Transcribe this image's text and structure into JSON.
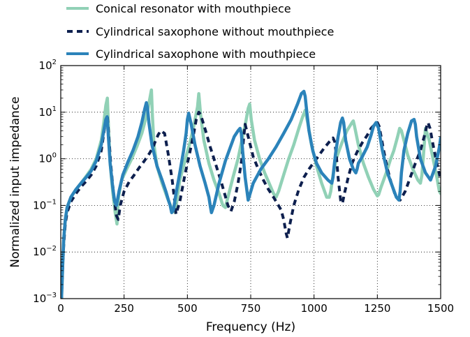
{
  "chart_data": {
    "type": "line",
    "xlabel": "Frequency (Hz)",
    "ylabel": "Normalized input impedance",
    "xlim": [
      0,
      1500
    ],
    "ylim": [
      0.001,
      100
    ],
    "yscale": "log",
    "grid": true,
    "legend_position": "top (above plot)",
    "x_ticks": [
      0,
      250,
      500,
      750,
      1000,
      1250,
      1500
    ],
    "x_tick_labels": [
      "0",
      "250",
      "500",
      "750",
      "1000",
      "1250",
      "1500"
    ],
    "y_ticks": [
      0.001,
      0.01,
      0.1,
      1,
      10,
      100
    ],
    "y_tick_labels": [
      {
        "base": "10",
        "exp": "−3"
      },
      {
        "base": "10",
        "exp": "−2"
      },
      {
        "base": "10",
        "exp": "−1"
      },
      {
        "base": "10",
        "exp": "0"
      },
      {
        "base": "10",
        "exp": "1"
      },
      {
        "base": "10",
        "exp": "2"
      }
    ],
    "series": [
      {
        "name": "Conical resonator with mouthpiece",
        "color": "#91d1b6",
        "style": "solid",
        "x": [
          3,
          8,
          12,
          18,
          25,
          40,
          60,
          80,
          100,
          120,
          140,
          160,
          170,
          178,
          184,
          189,
          195,
          205,
          215,
          222,
          228,
          240,
          260,
          280,
          300,
          320,
          340,
          352,
          358,
          362,
          368,
          380,
          400,
          420,
          440,
          452,
          460,
          470,
          490,
          510,
          525,
          540,
          545,
          552,
          565,
          585,
          605,
          625,
          640,
          650,
          660,
          680,
          700,
          715,
          730,
          740,
          746,
          752,
          765,
          785,
          805,
          825,
          840,
          850,
          860,
          880,
          900,
          920,
          940,
          955,
          965,
          975,
          990,
          1010,
          1030,
          1050,
          1060,
          1066,
          1075,
          1090,
          1110,
          1130,
          1150,
          1155,
          1160,
          1175,
          1195,
          1215,
          1235,
          1250,
          1255,
          1265,
          1285,
          1300,
          1315,
          1330,
          1338,
          1345,
          1355,
          1370,
          1390,
          1410,
          1420,
          1426,
          1432,
          1440,
          1455,
          1470,
          1485,
          1495,
          1500
        ],
        "y": [
          0.001,
          0.006,
          0.02,
          0.05,
          0.09,
          0.15,
          0.22,
          0.3,
          0.42,
          0.6,
          1.0,
          2.5,
          6.0,
          14.0,
          20.0,
          4.0,
          0.8,
          0.2,
          0.07,
          0.04,
          0.15,
          0.35,
          0.6,
          1.0,
          1.8,
          3.5,
          9.0,
          20.0,
          30.0,
          8.0,
          2.0,
          0.7,
          0.3,
          0.15,
          0.08,
          0.07,
          0.15,
          0.35,
          0.9,
          2.2,
          5.0,
          13.0,
          25.0,
          9.0,
          2.5,
          0.8,
          0.35,
          0.18,
          0.1,
          0.09,
          0.15,
          0.4,
          1.0,
          2.5,
          6.0,
          12.0,
          15.0,
          7.0,
          2.5,
          1.0,
          0.5,
          0.28,
          0.18,
          0.15,
          0.2,
          0.45,
          1.0,
          2.0,
          4.5,
          8.0,
          11.0,
          6.0,
          2.0,
          0.7,
          0.3,
          0.15,
          0.15,
          0.2,
          0.45,
          1.1,
          2.2,
          4.0,
          6.0,
          6.5,
          5.0,
          2.0,
          0.8,
          0.4,
          0.22,
          0.16,
          0.17,
          0.25,
          0.5,
          0.9,
          1.5,
          3.0,
          4.5,
          4.0,
          2.5,
          1.2,
          0.6,
          0.35,
          0.3,
          0.45,
          1.2,
          4.5,
          2.5,
          1.0,
          0.4,
          0.2,
          0.18
        ]
      },
      {
        "name": "Cylindrical saxophone without mouthpiece",
        "color": "#0d1f4e",
        "style": "dashed",
        "x": [
          3,
          8,
          12,
          18,
          25,
          40,
          60,
          80,
          100,
          120,
          140,
          160,
          170,
          178,
          184,
          190,
          198,
          210,
          220,
          227,
          235,
          250,
          270,
          290,
          310,
          330,
          350,
          365,
          375,
          385,
          395,
          410,
          425,
          440,
          448,
          455,
          470,
          490,
          510,
          525,
          535,
          545,
          552,
          562,
          575,
          590,
          605,
          620,
          635,
          648,
          660,
          672,
          685,
          700,
          715,
          722,
          728,
          740,
          760,
          780,
          800,
          820,
          840,
          855,
          870,
          880,
          890,
          895,
          905,
          920,
          940,
          960,
          980,
          1000,
          1020,
          1040,
          1060,
          1075,
          1082,
          1088,
          1095,
          1105,
          1112,
          1120,
          1135,
          1150,
          1170,
          1190,
          1210,
          1225,
          1240,
          1250,
          1257,
          1265,
          1275,
          1290,
          1305,
          1320,
          1340,
          1360,
          1380,
          1400,
          1420,
          1435,
          1445,
          1450,
          1458,
          1470,
          1485,
          1500
        ],
        "y": [
          0.001,
          0.005,
          0.015,
          0.04,
          0.07,
          0.12,
          0.18,
          0.25,
          0.33,
          0.45,
          0.7,
          1.5,
          3.5,
          7.0,
          8.5,
          3.0,
          0.7,
          0.15,
          0.06,
          0.05,
          0.1,
          0.2,
          0.32,
          0.45,
          0.65,
          0.9,
          1.3,
          1.8,
          2.5,
          3.3,
          4.0,
          3.5,
          1.2,
          0.35,
          0.15,
          0.065,
          0.12,
          0.45,
          1.4,
          3.5,
          7.0,
          10.0,
          9.0,
          6.0,
          3.5,
          1.8,
          1.0,
          0.55,
          0.3,
          0.17,
          0.1,
          0.075,
          0.12,
          0.3,
          1.0,
          2.8,
          5.5,
          3.0,
          1.1,
          0.6,
          0.35,
          0.22,
          0.15,
          0.11,
          0.08,
          0.05,
          0.025,
          0.02,
          0.04,
          0.1,
          0.22,
          0.4,
          0.6,
          0.85,
          1.2,
          1.7,
          2.3,
          2.8,
          2.3,
          1.2,
          0.4,
          0.13,
          0.11,
          0.18,
          0.4,
          0.8,
          1.4,
          2.2,
          3.2,
          4.5,
          5.5,
          6.0,
          5.0,
          3.0,
          1.5,
          0.6,
          0.3,
          0.17,
          0.13,
          0.2,
          0.4,
          0.8,
          1.5,
          3.0,
          5.0,
          6.0,
          4.5,
          2.0,
          0.8,
          0.35
        ]
      },
      {
        "name": "Cylindrical saxophone with mouthpiece",
        "color": "#2b83ba",
        "style": "solid",
        "x": [
          3,
          8,
          12,
          18,
          25,
          40,
          60,
          80,
          100,
          120,
          140,
          160,
          170,
          178,
          183,
          188,
          195,
          205,
          213,
          220,
          230,
          245,
          265,
          285,
          305,
          320,
          332,
          338,
          342,
          348,
          360,
          380,
          400,
          415,
          425,
          432,
          438,
          445,
          455,
          470,
          485,
          495,
          500,
          505,
          515,
          530,
          550,
          570,
          585,
          590,
          595,
          605,
          625,
          650,
          670,
          685,
          700,
          708,
          713,
          718,
          728,
          740,
          760,
          790,
          820,
          850,
          880,
          910,
          935,
          950,
          960,
          965,
          970,
          980,
          995,
          1010,
          1030,
          1055,
          1070,
          1075,
          1078,
          1085,
          1095,
          1105,
          1112,
          1117,
          1125,
          1140,
          1155,
          1165,
          1170,
          1175,
          1190,
          1210,
          1225,
          1235,
          1245,
          1255,
          1270,
          1290,
          1310,
          1325,
          1335,
          1340,
          1345,
          1355,
          1370,
          1385,
          1395,
          1400,
          1405,
          1420,
          1440,
          1460,
          1480,
          1495,
          1500
        ],
        "y": [
          0.001,
          0.006,
          0.02,
          0.05,
          0.09,
          0.15,
          0.22,
          0.3,
          0.4,
          0.55,
          0.9,
          2.0,
          4.0,
          7.0,
          8.0,
          3.0,
          0.8,
          0.25,
          0.12,
          0.1,
          0.2,
          0.45,
          0.85,
          1.5,
          3.0,
          6.0,
          12.0,
          16.0,
          13.0,
          6.0,
          2.0,
          0.7,
          0.35,
          0.2,
          0.13,
          0.1,
          0.07,
          0.08,
          0.18,
          0.5,
          1.5,
          3.5,
          7.0,
          9.5,
          5.5,
          2.0,
          0.7,
          0.3,
          0.15,
          0.1,
          0.07,
          0.1,
          0.3,
          0.9,
          1.8,
          3.0,
          4.0,
          4.5,
          3.5,
          1.5,
          0.4,
          0.13,
          0.3,
          0.6,
          1.0,
          1.8,
          3.5,
          7.0,
          15.0,
          25.0,
          28.0,
          22.0,
          12.0,
          4.0,
          1.5,
          0.8,
          0.5,
          0.35,
          0.3,
          0.4,
          0.6,
          1.3,
          3.0,
          6.0,
          7.5,
          6.0,
          2.5,
          1.0,
          0.6,
          0.5,
          0.6,
          0.8,
          1.1,
          1.8,
          3.2,
          5.0,
          6.0,
          4.5,
          1.5,
          0.5,
          0.25,
          0.15,
          0.13,
          0.2,
          0.5,
          1.5,
          3.5,
          6.5,
          7.0,
          5.5,
          3.0,
          1.0,
          0.5,
          0.35,
          0.7,
          1.8,
          2.8
        ]
      }
    ]
  }
}
